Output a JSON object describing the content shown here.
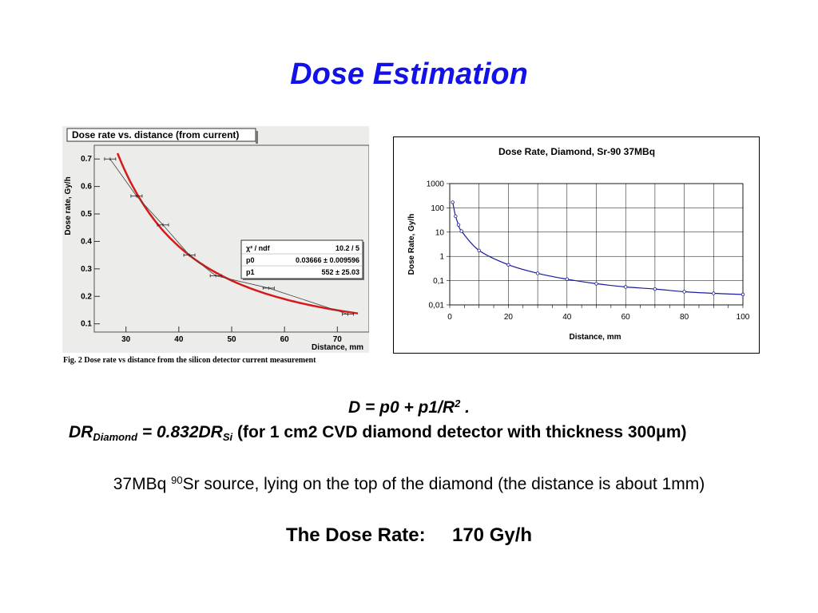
{
  "slide": {
    "title": "Dose Estimation",
    "formula": {
      "lhs": "D = p0 + p1/R",
      "exp": "2",
      "tail": " ."
    },
    "dr_relation": {
      "dr": "DR",
      "diamond_sub": "Diamond",
      "eq": " = 0.832DR",
      "si_sub": "Si",
      "note_pre": " (for  1 cm2 CVD diamond detector with thickness 300",
      "mu": "μ",
      "note_post": "m)"
    },
    "source": {
      "pre": "37MBq ",
      "isotope_mass": "90",
      "post": "Sr source, lying on the top of the diamond (the distance is about 1mm)"
    },
    "dose_rate": {
      "label": "The Dose Rate:",
      "value": "170 Gy/h"
    }
  },
  "chart_data": [
    {
      "type": "scatter",
      "title": "Dose rate vs. distance (from current)",
      "caption": "Fig. 2 Dose rate vs distance from the silicon detector current measurement",
      "xlabel": "Distance, mm",
      "ylabel": "Dose rate, Gy/h",
      "xlim": [
        24,
        76
      ],
      "ylim": [
        0.07,
        0.75
      ],
      "x_ticks": [
        "30",
        "40",
        "50",
        "60",
        "70"
      ],
      "x_tick_values": [
        30,
        40,
        50,
        60,
        70
      ],
      "y_ticks": [
        "0.1",
        "0.2",
        "0.3",
        "0.4",
        "0.5",
        "0.6",
        "0.7"
      ],
      "y_tick_values": [
        0.1,
        0.2,
        0.3,
        0.4,
        0.5,
        0.6,
        0.7
      ],
      "grid": false,
      "colors": {
        "fit": "#d61a1a",
        "data": "#444444",
        "frame_bg": "#ececea"
      },
      "series": [
        {
          "x": [
            27,
            32,
            37,
            42,
            47,
            57,
            72
          ],
          "y": [
            0.7,
            0.565,
            0.46,
            0.35,
            0.275,
            0.23,
            0.135
          ]
        }
      ],
      "fit": {
        "model": "D = p0 + p1/R^2",
        "p0": 0.03666,
        "p1": 552,
        "x_range": [
          28.4,
          74
        ]
      },
      "stats_box": {
        "rows": [
          {
            "name": "χ² / ndf",
            "value": "10.2 / 5"
          },
          {
            "name": "p0",
            "value": "0.03666 ± 0.009596"
          },
          {
            "name": "p1",
            "value": "552 ± 25.03"
          }
        ]
      }
    },
    {
      "type": "line",
      "title": "Dose Rate, Diamond, Sr-90 37MBq",
      "xlabel": "Distance, mm",
      "ylabel": "Dose Rate, Gy/h",
      "xlim": [
        0,
        100
      ],
      "ylim": [
        0.01,
        1000
      ],
      "y_scale": "log",
      "x_ticks": [
        "0",
        "20",
        "40",
        "60",
        "80",
        "100"
      ],
      "x_tick_values": [
        0,
        20,
        40,
        60,
        80,
        100
      ],
      "y_ticks": [
        "0,01",
        "0,1",
        "1",
        "10",
        "100",
        "1000"
      ],
      "y_tick_values": [
        0.01,
        0.1,
        1,
        10,
        100,
        1000
      ],
      "grid": true,
      "colors": {
        "line": "#1a1a9a",
        "marker": "#1a1a9a"
      },
      "series": [
        {
          "x": [
            1,
            2,
            3,
            4,
            10,
            20,
            30,
            40,
            50,
            60,
            70,
            80,
            90,
            100
          ],
          "y": [
            170,
            45,
            20,
            11,
            1.75,
            0.45,
            0.2,
            0.115,
            0.075,
            0.055,
            0.045,
            0.035,
            0.03,
            0.027
          ]
        }
      ]
    }
  ]
}
